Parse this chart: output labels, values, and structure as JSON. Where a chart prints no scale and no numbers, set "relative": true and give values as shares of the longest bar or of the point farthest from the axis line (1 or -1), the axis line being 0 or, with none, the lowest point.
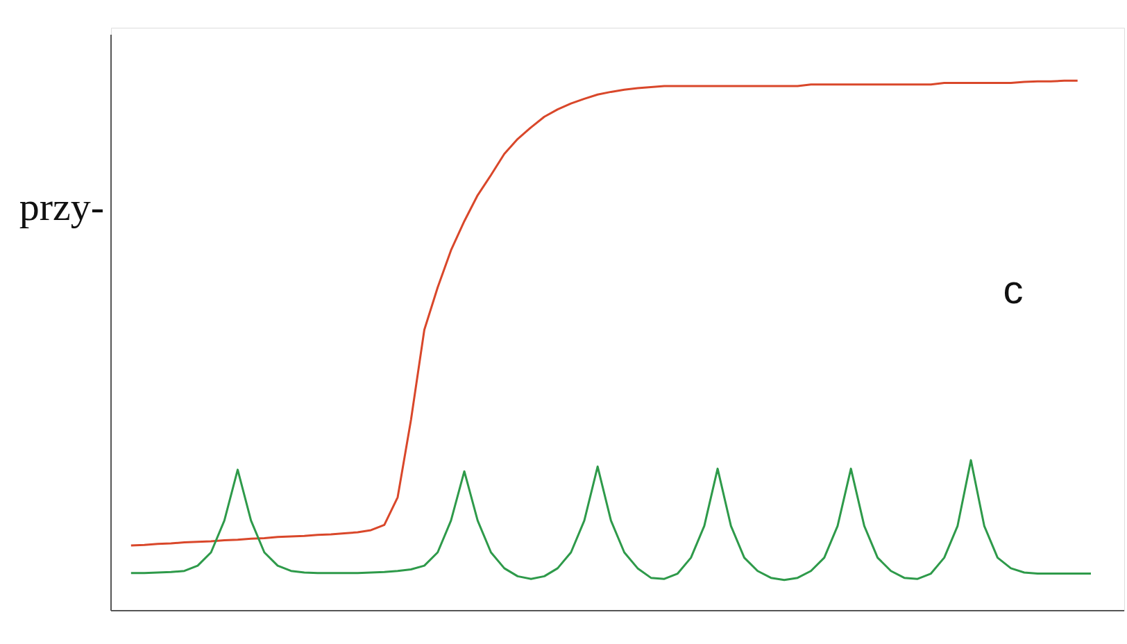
{
  "chart_data": {
    "type": "line",
    "relative": true,
    "categories": [
      null,
      null,
      null,
      null,
      null,
      null,
      null,
      null,
      null,
      null,
      null,
      null,
      null,
      null,
      null,
      null,
      null,
      null,
      null,
      null,
      null,
      null,
      null,
      null,
      null,
      null,
      null,
      null,
      null,
      null,
      null,
      null,
      null,
      null,
      null,
      null,
      null,
      null,
      null,
      null,
      null,
      null,
      null,
      null,
      null,
      null,
      null,
      null,
      null,
      null,
      null,
      null,
      null,
      null,
      null,
      null,
      null,
      null,
      null,
      null,
      null,
      null,
      null,
      null,
      null,
      null,
      null,
      null,
      null,
      null,
      null,
      null,
      null
    ],
    "series": [
      {
        "color": "#d9472a",
        "values": [
          0.123,
          0.124,
          0.126,
          0.127,
          0.129,
          0.13,
          0.131,
          0.133,
          0.134,
          0.136,
          0.137,
          0.139,
          0.14,
          0.141,
          0.143,
          0.144,
          0.146,
          0.148,
          0.152,
          0.162,
          0.214,
          0.36,
          0.53,
          0.61,
          0.68,
          0.735,
          0.784,
          0.822,
          0.862,
          0.89,
          0.912,
          0.932,
          0.946,
          0.957,
          0.966,
          0.974,
          0.979,
          0.983,
          0.986,
          0.988,
          0.99,
          0.99,
          0.99,
          0.99,
          0.99,
          0.99,
          0.99,
          0.99,
          0.99,
          0.99,
          0.99,
          0.993,
          0.993,
          0.993,
          0.993,
          0.993,
          0.993,
          0.993,
          0.993,
          0.993,
          0.993,
          0.996,
          0.996,
          0.996,
          0.996,
          0.996,
          0.996,
          0.998,
          0.999,
          0.999,
          1,
          1,
          null
        ]
      },
      {
        "color": "#2e9a4a",
        "values": [
          0.071,
          0.071,
          0.072,
          0.073,
          0.075,
          0.085,
          0.11,
          0.17,
          0.266,
          0.17,
          0.11,
          0.085,
          0.075,
          0.072,
          0.071,
          0.071,
          0.071,
          0.071,
          0.072,
          0.073,
          0.075,
          0.078,
          0.085,
          0.11,
          0.17,
          0.263,
          0.17,
          0.11,
          0.08,
          0.065,
          0.06,
          0.065,
          0.08,
          0.11,
          0.17,
          0.272,
          0.17,
          0.11,
          0.08,
          0.062,
          0.06,
          0.07,
          0.1,
          0.16,
          0.268,
          0.16,
          0.1,
          0.075,
          0.062,
          0.058,
          0.062,
          0.075,
          0.1,
          0.16,
          0.268,
          0.16,
          0.1,
          0.075,
          0.062,
          0.06,
          0.07,
          0.1,
          0.16,
          0.284,
          0.16,
          0.1,
          0.08,
          0.072,
          0.07,
          0.07,
          0.07,
          0.07,
          0.07
        ]
      }
    ],
    "line_style": "solid",
    "annotations": [
      "przy-",
      "c"
    ]
  }
}
